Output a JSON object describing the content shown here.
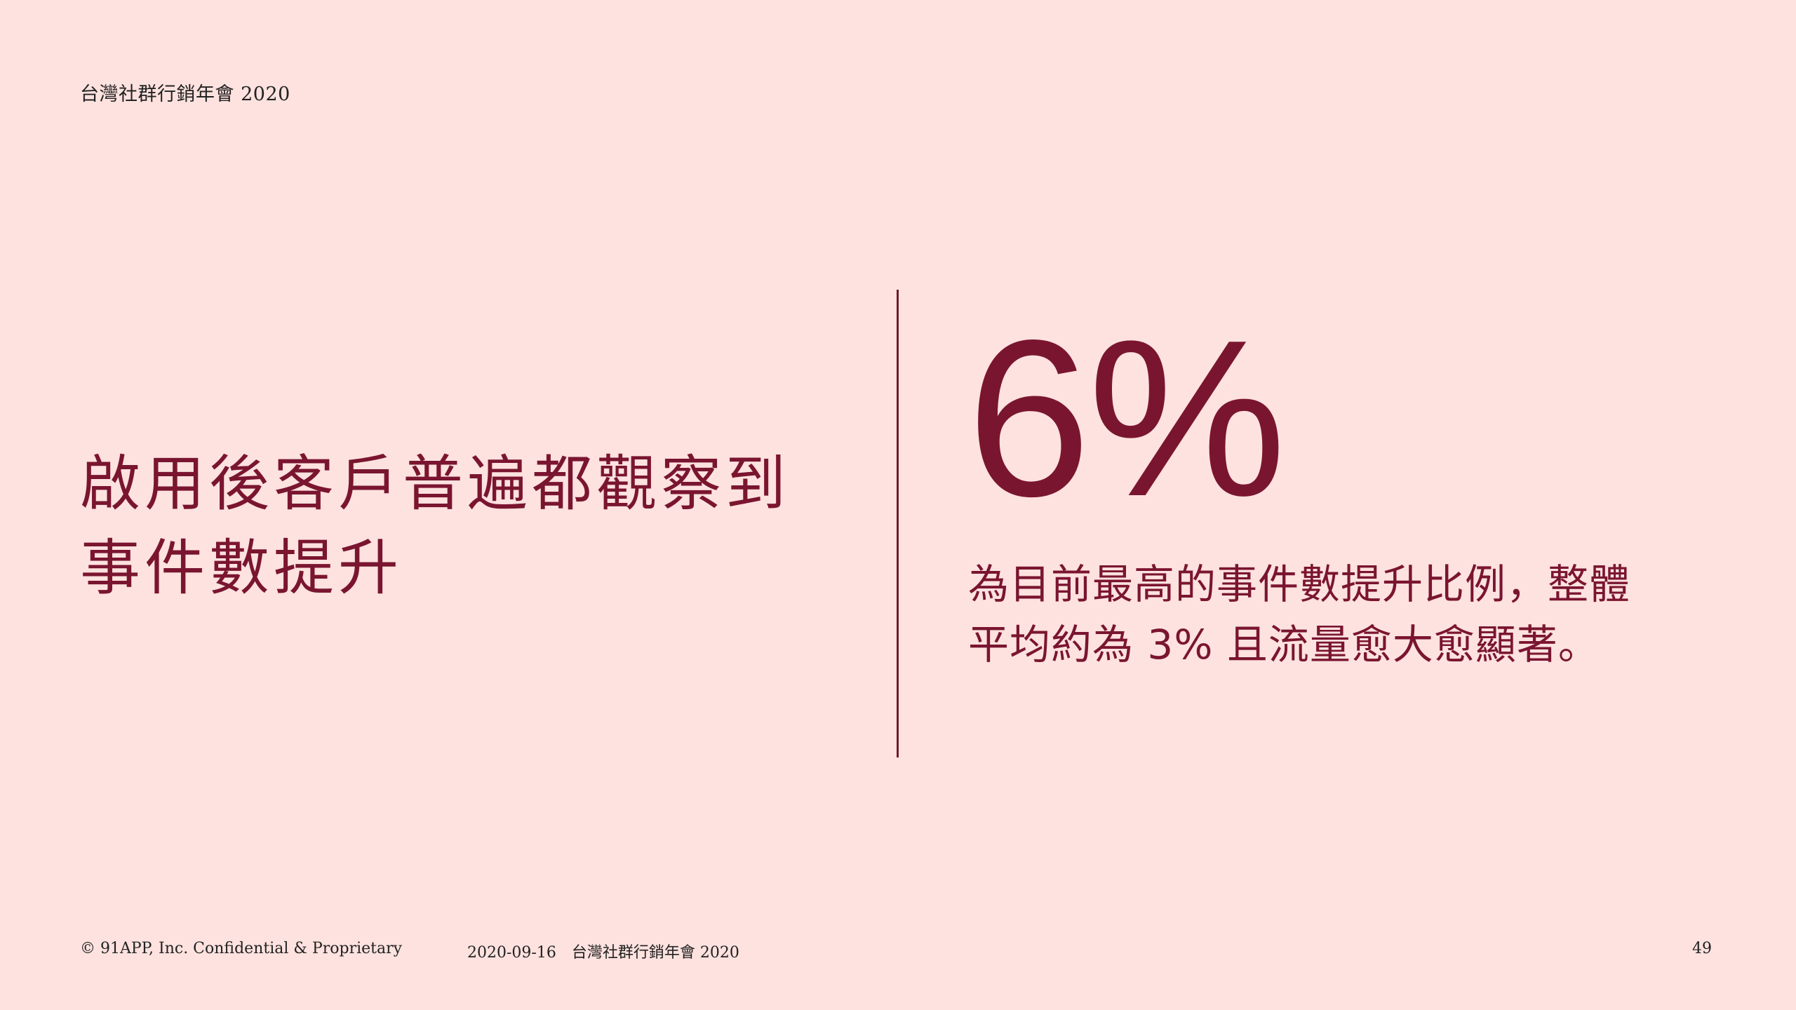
{
  "header": {
    "title": "台灣社群行銷年會 2020"
  },
  "main": {
    "headline_lines": [
      "啟用後客戶普遍都觀察到",
      "事件數提升"
    ],
    "stat": "6%",
    "description_lines": [
      "為目前最高的事件數提升比例，整體",
      "平均約為 3% 且流量愈大愈顯著。"
    ]
  },
  "footer": {
    "copyright": "© 91APP, Inc. Confidential & Proprietary",
    "date_event": "2020-09-16　台灣社群行銷年會 2020",
    "page_number": "49"
  },
  "colors": {
    "background": "#fde2df",
    "accent": "#7a1530",
    "footer_text": "#222222"
  }
}
